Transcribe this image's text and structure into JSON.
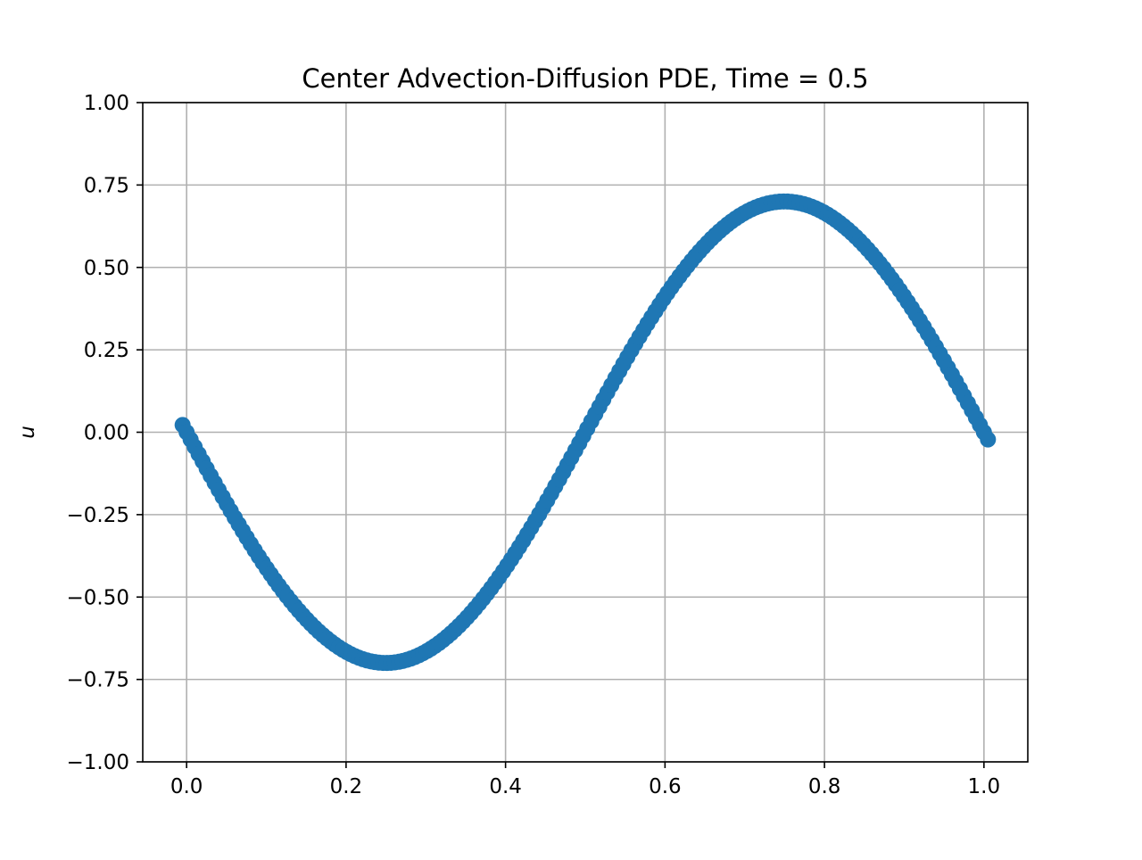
{
  "chart_data": {
    "type": "scatter",
    "title": "Center Advection-Diffusion PDE, Time = 0.5",
    "xlabel": "",
    "ylabel": "u",
    "xlim": [
      -0.055,
      1.055
    ],
    "ylim": [
      -1.0,
      1.0
    ],
    "xticks": [
      0.0,
      0.2,
      0.4,
      0.6,
      0.8,
      1.0
    ],
    "xtick_labels": [
      "0.0",
      "0.2",
      "0.4",
      "0.6",
      "0.8",
      "1.0"
    ],
    "yticks": [
      -1.0,
      -0.75,
      -0.5,
      -0.25,
      0.0,
      0.25,
      0.5,
      0.75,
      1.0
    ],
    "ytick_labels": [
      "−1.00",
      "−0.75",
      "−0.50",
      "−0.25",
      "0.00",
      "0.25",
      "0.50",
      "0.75",
      "1.00"
    ],
    "grid": true,
    "legend": "none",
    "series": [
      {
        "marker_color": "#1f77b4",
        "x_start": -0.005,
        "x_end": 1.005,
        "n_points": 202,
        "amplitude": 0.7,
        "description_function": "u = -0.7*sin(2*pi*x)"
      }
    ]
  }
}
